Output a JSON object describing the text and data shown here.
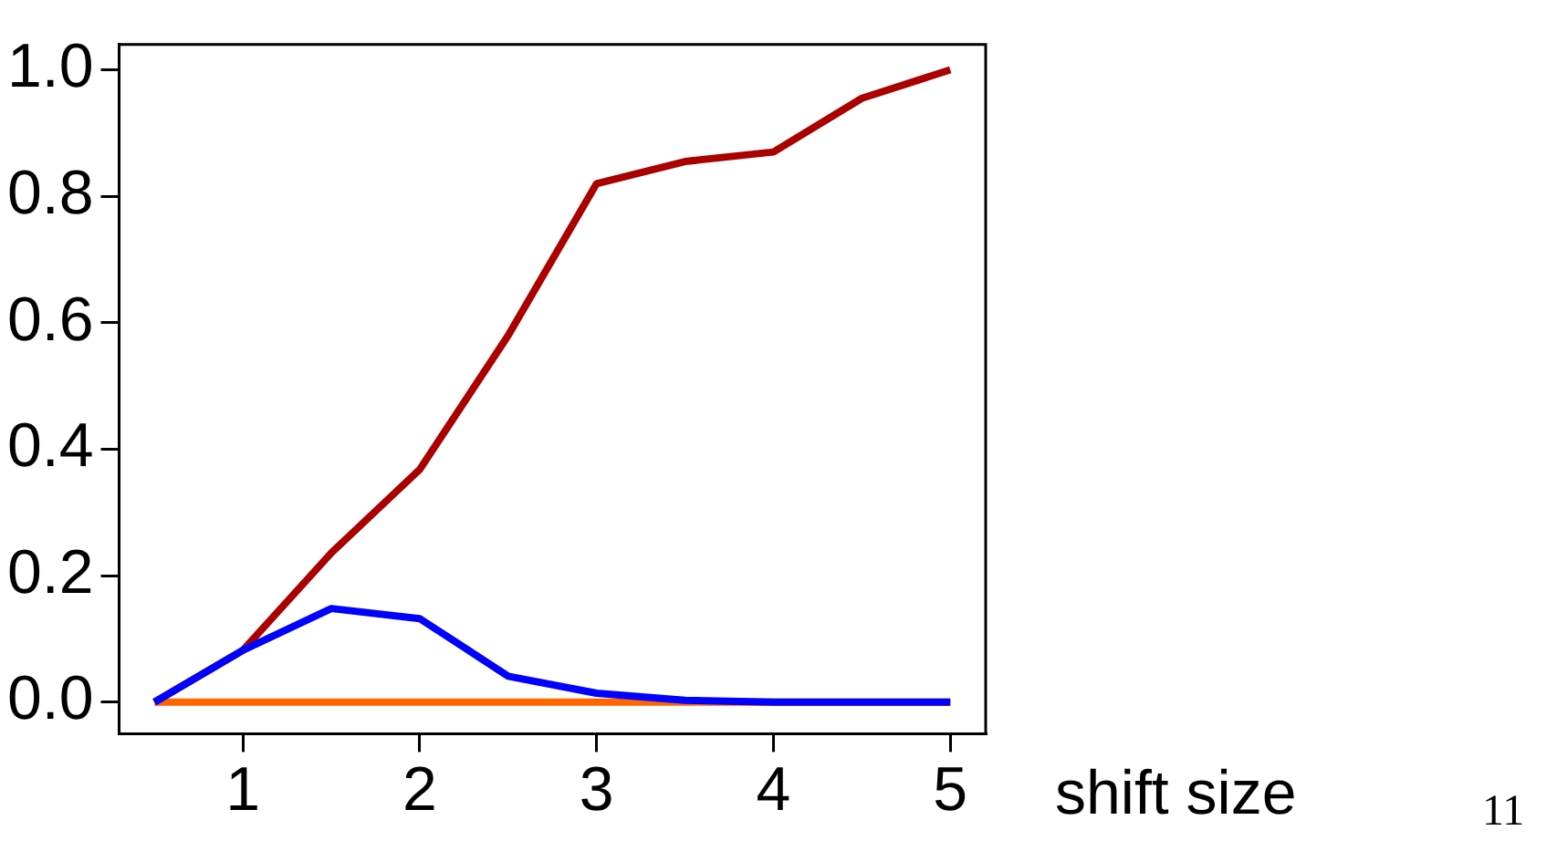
{
  "chart_data": {
    "type": "line",
    "xlabel": "shift size",
    "annotations": [
      "11"
    ],
    "x": [
      0.5,
      1,
      1.5,
      2,
      2.5,
      3,
      3.5,
      4,
      4.5,
      5
    ],
    "xlim": [
      0.3,
      5.2
    ],
    "xticks": [
      1,
      2,
      3,
      4,
      5
    ],
    "ylim": [
      -0.05,
      1.04
    ],
    "yticks": [
      {
        "value": 0,
        "label": "0.0"
      },
      0.2,
      0.4,
      0.6,
      0.8,
      {
        "value": 1,
        "label": "1.0"
      }
    ],
    "grid": false,
    "legend": false,
    "marker": "none",
    "line_style": "solid",
    "series": [
      {
        "color": "#ff6600",
        "values": [
          0,
          0,
          0,
          0,
          0,
          0,
          0,
          0,
          0,
          0
        ]
      },
      {
        "color": "#aa0000",
        "values": [
          0,
          0.082,
          0.236,
          0.368,
          0.58,
          0.82,
          0.855,
          0.87,
          0.955,
          1.0
        ]
      },
      {
        "color": "#0000ff",
        "values": [
          0,
          0.082,
          0.148,
          0.132,
          0.041,
          0.014,
          0.003,
          0,
          0,
          0
        ]
      }
    ]
  }
}
